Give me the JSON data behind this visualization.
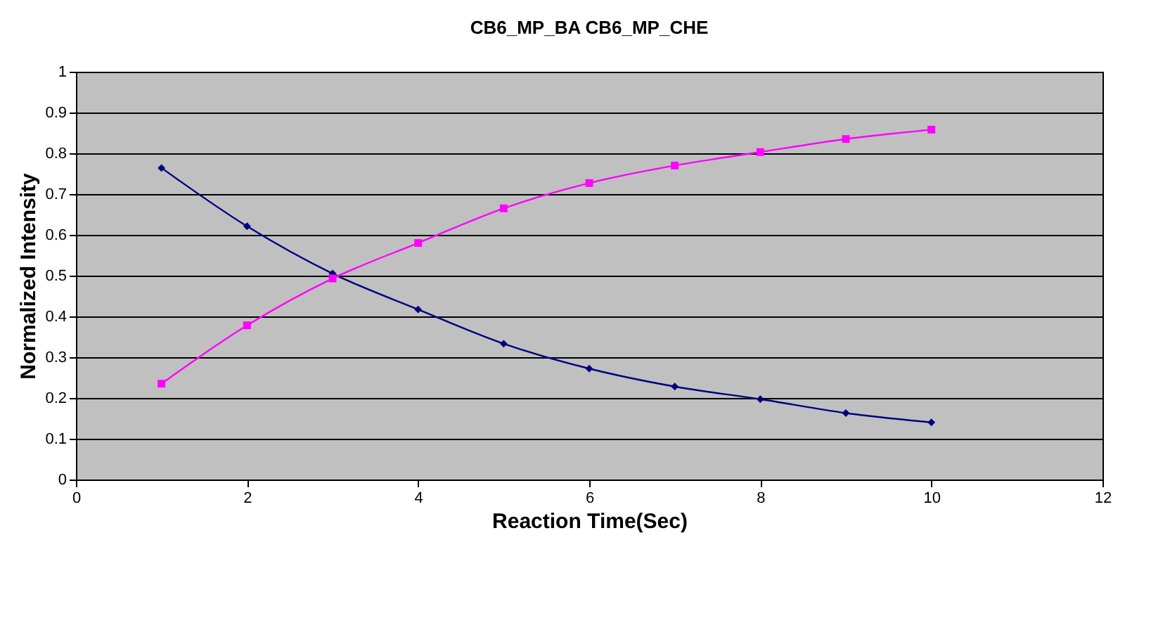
{
  "chart_data": {
    "type": "line",
    "title": "CB6_MP_BA  CB6_MP_CHE",
    "xlabel": "Reaction Time(Sec)",
    "ylabel": "Normalized Intensity",
    "x": [
      1,
      2,
      3,
      4,
      5,
      6,
      7,
      8,
      9,
      10
    ],
    "series": [
      {
        "color": "#000080",
        "marker": "diamond",
        "values": [
          0.764,
          0.621,
          0.505,
          0.417,
          0.333,
          0.272,
          0.228,
          0.197,
          0.163,
          0.14
        ]
      },
      {
        "color": "#ff00ff",
        "marker": "square",
        "values": [
          0.235,
          0.378,
          0.493,
          0.58,
          0.665,
          0.727,
          0.77,
          0.803,
          0.835,
          0.858
        ]
      }
    ],
    "xlim": [
      0,
      12
    ],
    "xticks": [
      0,
      2,
      4,
      6,
      8,
      10,
      12
    ],
    "ylim": [
      0,
      1
    ],
    "yticks": [
      0,
      0.1,
      0.2,
      0.3,
      0.4,
      0.5,
      0.6,
      0.7,
      0.8,
      0.9,
      1
    ],
    "grid": "y",
    "line_style": "solid"
  }
}
